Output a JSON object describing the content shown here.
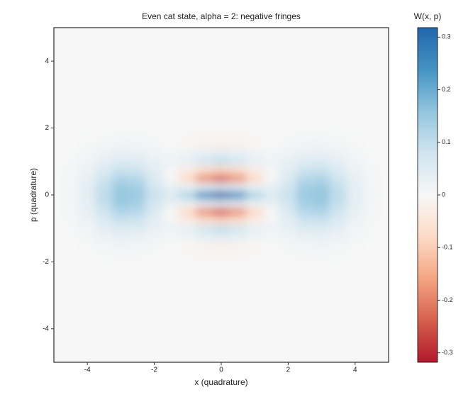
{
  "chart_data": {
    "type": "heatmap",
    "title": "Even cat state, alpha = 2: negative fringes",
    "xlabel": "x (quadrature)",
    "ylabel": "p (quadrature)",
    "x": [
      -4.5,
      -4,
      -3.5,
      -3,
      -2.5,
      -2,
      -1.5,
      -1,
      -0.5,
      0,
      0.5,
      1,
      1.5,
      2,
      2.5,
      3,
      3.5,
      4,
      4.5
    ],
    "y": [
      -2,
      -1.75,
      -1.5,
      -1.25,
      -1,
      -0.75,
      -0.5,
      -0.25,
      0,
      0.25,
      0.5,
      0.75,
      1,
      1.25,
      1.5,
      1.75,
      2
    ],
    "z": [
      [
        0,
        0.001,
        0.002,
        0.003,
        0.003,
        0.001,
        0.001,
        0.001,
        0.001,
        0.002,
        0.001,
        0.001,
        0.001,
        0.001,
        0.003,
        0.003,
        0.002,
        0.001,
        0
      ],
      [
        0,
        0.002,
        0.005,
        0.007,
        0.007,
        0.004,
        0,
        -0.005,
        -0.01,
        -0.013,
        -0.01,
        -0.005,
        0,
        0.004,
        0.007,
        0.007,
        0.005,
        0.002,
        0
      ],
      [
        0.001,
        0.004,
        0.011,
        0.016,
        0.015,
        0.008,
        0.001,
        -0.007,
        -0.015,
        -0.02,
        -0.015,
        -0.007,
        0.001,
        0.008,
        0.015,
        0.016,
        0.011,
        0.004,
        0.001
      ],
      [
        0.002,
        0.008,
        0.021,
        0.032,
        0.03,
        0.018,
        0.011,
        0.019,
        0.037,
        0.047,
        0.037,
        0.019,
        0.011,
        0.018,
        0.03,
        0.032,
        0.021,
        0.008,
        0.002
      ],
      [
        0.004,
        0.015,
        0.037,
        0.057,
        0.053,
        0.031,
        0.02,
        0.037,
        0.074,
        0.095,
        0.074,
        0.037,
        0.02,
        0.031,
        0.053,
        0.057,
        0.037,
        0.015,
        0.004
      ],
      [
        0.006,
        0.023,
        0.058,
        0.088,
        0.081,
        0.044,
        0.007,
        -0.027,
        -0.063,
        -0.081,
        -0.063,
        -0.027,
        0.007,
        0.044,
        0.081,
        0.088,
        0.058,
        0.023,
        0.006
      ],
      [
        0.008,
        0.031,
        0.079,
        0.12,
        0.111,
        0.058,
        -0.004,
        -0.082,
        -0.183,
        -0.236,
        -0.183,
        -0.082,
        -0.004,
        0.058,
        0.111,
        0.12,
        0.079,
        0.031,
        0.008
      ],
      [
        0.009,
        0.038,
        0.095,
        0.145,
        0.134,
        0.076,
        0.031,
        0.022,
        0.037,
        0.047,
        0.037,
        0.022,
        0.031,
        0.076,
        0.134,
        0.145,
        0.095,
        0.038,
        0.009
      ],
      [
        0.01,
        0.04,
        0.101,
        0.155,
        0.144,
        0.086,
        0.061,
        0.123,
        0.249,
        0.318,
        0.249,
        0.123,
        0.061,
        0.086,
        0.144,
        0.155,
        0.101,
        0.04,
        0.01
      ],
      [
        0.009,
        0.038,
        0.095,
        0.145,
        0.134,
        0.076,
        0.031,
        0.022,
        0.037,
        0.047,
        0.037,
        0.022,
        0.031,
        0.076,
        0.134,
        0.145,
        0.095,
        0.038,
        0.009
      ],
      [
        0.008,
        0.031,
        0.079,
        0.12,
        0.111,
        0.058,
        -0.004,
        -0.082,
        -0.183,
        -0.236,
        -0.183,
        -0.082,
        -0.004,
        0.058,
        0.111,
        0.12,
        0.079,
        0.031,
        0.008
      ],
      [
        0.006,
        0.023,
        0.058,
        0.088,
        0.081,
        0.044,
        0.007,
        -0.027,
        -0.063,
        -0.081,
        -0.063,
        -0.027,
        0.007,
        0.044,
        0.081,
        0.088,
        0.058,
        0.023,
        0.006
      ],
      [
        0.004,
        0.015,
        0.037,
        0.057,
        0.053,
        0.031,
        0.02,
        0.037,
        0.074,
        0.095,
        0.074,
        0.037,
        0.02,
        0.031,
        0.053,
        0.057,
        0.037,
        0.015,
        0.004
      ],
      [
        0.002,
        0.008,
        0.021,
        0.032,
        0.03,
        0.018,
        0.011,
        0.019,
        0.037,
        0.047,
        0.037,
        0.019,
        0.011,
        0.018,
        0.03,
        0.032,
        0.021,
        0.008,
        0.002
      ],
      [
        0.001,
        0.004,
        0.011,
        0.016,
        0.015,
        0.008,
        0.001,
        -0.007,
        -0.015,
        -0.02,
        -0.015,
        -0.007,
        0.001,
        0.008,
        0.015,
        0.016,
        0.011,
        0.004,
        0.001
      ],
      [
        0,
        0.002,
        0.005,
        0.007,
        0.007,
        0.004,
        0,
        -0.005,
        -0.01,
        -0.013,
        -0.01,
        -0.005,
        0,
        0.004,
        0.007,
        0.007,
        0.005,
        0.002,
        0
      ],
      [
        0,
        0.001,
        0.002,
        0.003,
        0.003,
        0.001,
        0.001,
        0.001,
        0.001,
        0.002,
        0.001,
        0.001,
        0.001,
        0.001,
        0.003,
        0.003,
        0.002,
        0.001,
        0
      ]
    ],
    "zlim": [
      -0.318,
      0.318
    ],
    "colorscale": [
      "#b2182b",
      "#d6604d",
      "#f4a582",
      "#fddbc7",
      "#f7f7f7",
      "#d1e5f0",
      "#92c5de",
      "#4393c3",
      "#2166ac"
    ],
    "xlim": [
      -5,
      5
    ],
    "ylim": [
      -5,
      5
    ],
    "xticks": [
      -4,
      -2,
      0,
      2,
      4
    ],
    "yticks": [
      -4,
      -2,
      0,
      2,
      4
    ],
    "colorbar": {
      "title": "W(x, p)",
      "ticks": [
        -0.3,
        -0.2,
        -0.1,
        0,
        0.1,
        0.2,
        0.3
      ]
    }
  }
}
